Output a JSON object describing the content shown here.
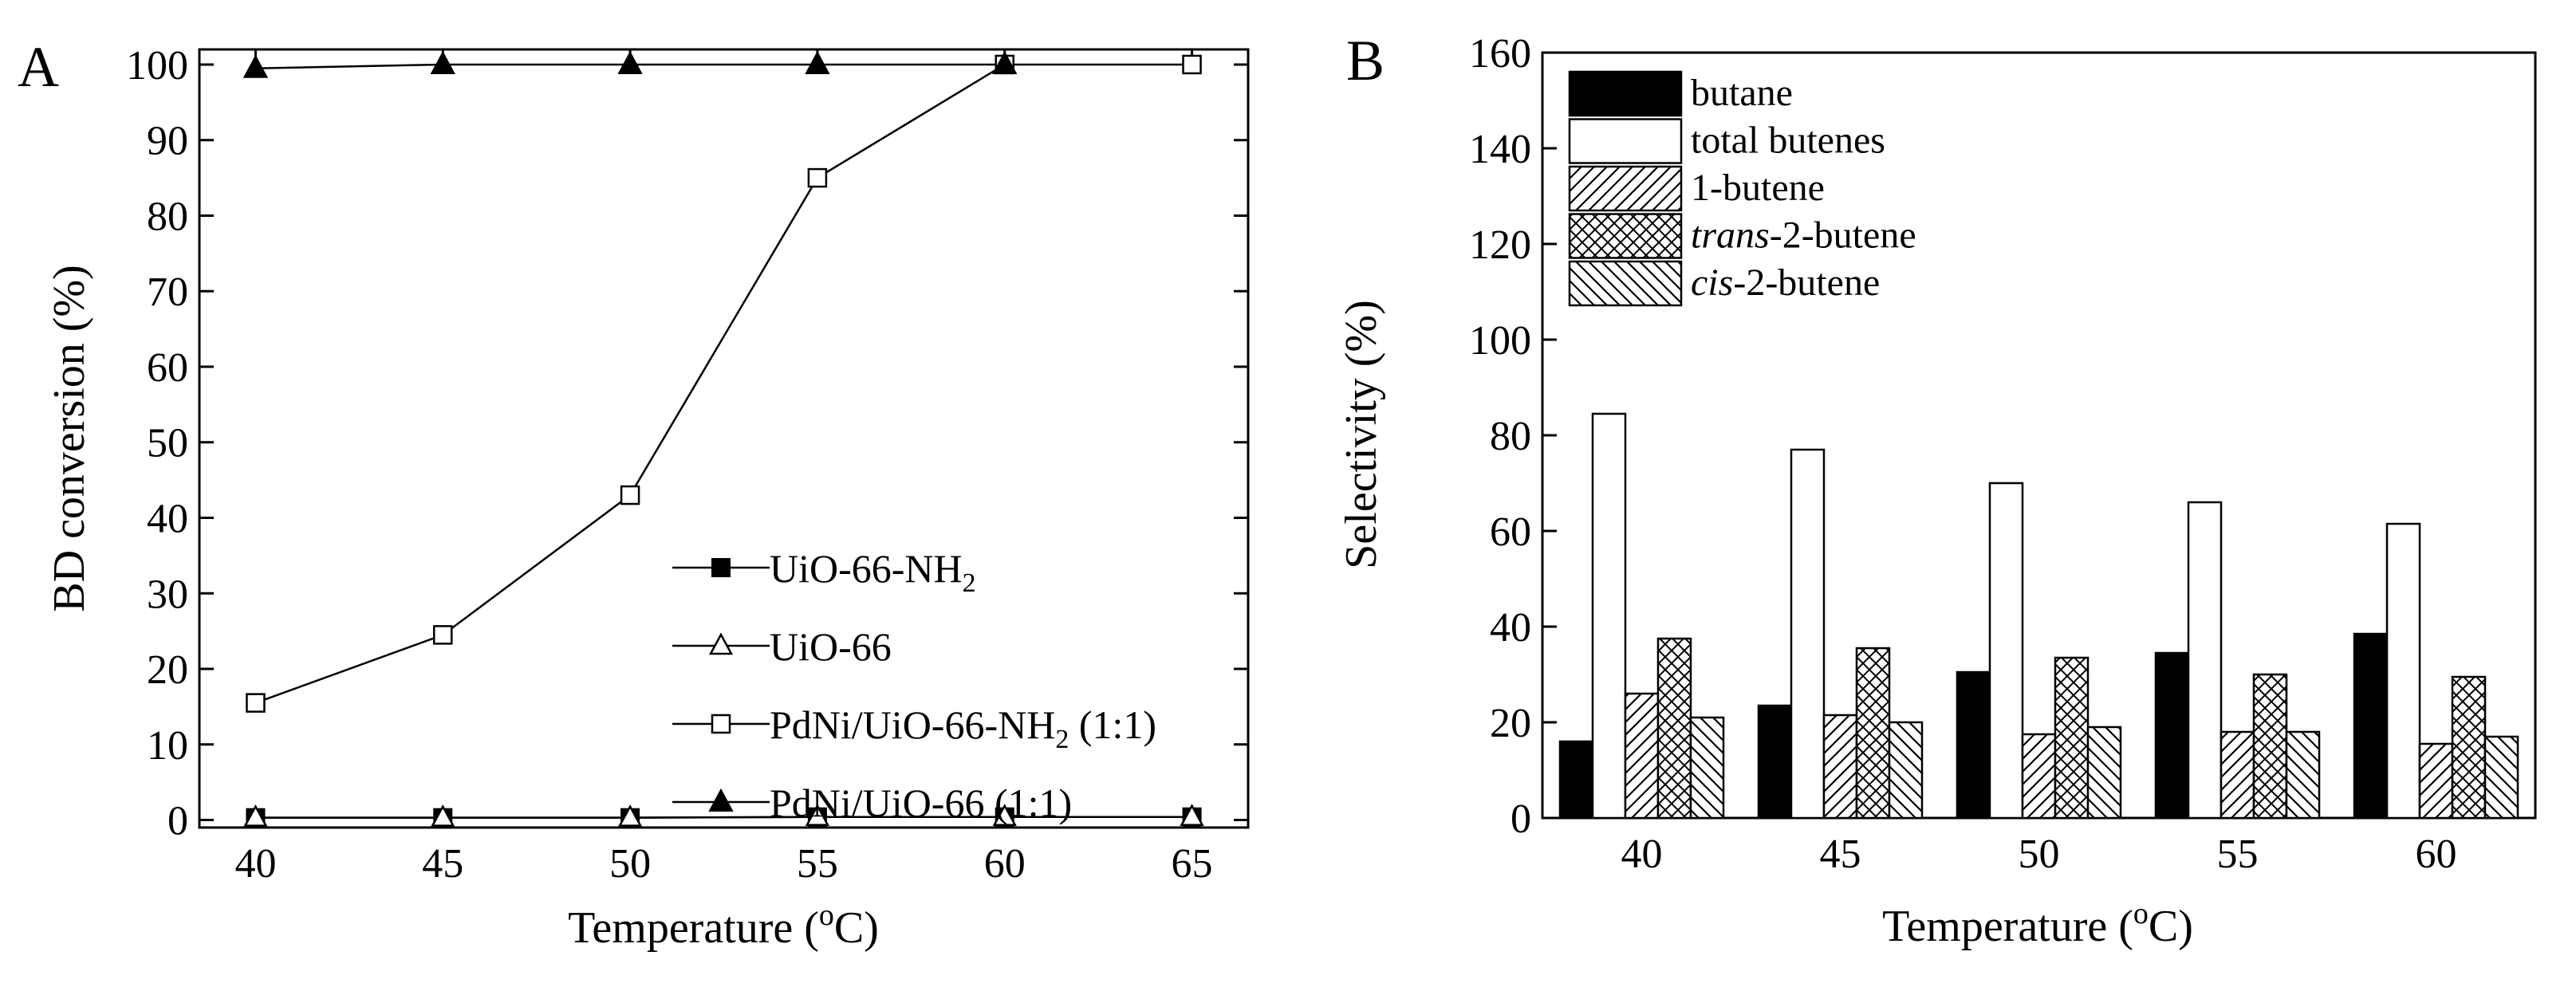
{
  "colors": {
    "ink": "#000000",
    "paper": "#ffffff"
  },
  "chart_data": [
    {
      "panel": "A",
      "type": "line",
      "xlabel_prefix": "Temperature (",
      "xlabel_sup": "o",
      "xlabel_suffix": "C)",
      "ylabel": "BD conversion (%)",
      "xlim": [
        38.5,
        66.5
      ],
      "ylim": [
        -1,
        102
      ],
      "xticks": [
        40,
        45,
        50,
        55,
        60,
        65
      ],
      "yticks": [
        0,
        10,
        20,
        30,
        40,
        50,
        60,
        70,
        80,
        90,
        100
      ],
      "legend_position": "lower-right",
      "series": [
        {
          "name": "UiO-66-NH2",
          "label_main": "UiO-66-NH",
          "label_sub": "2",
          "label_tail": "",
          "marker": "filled-square",
          "x": [
            40,
            45,
            50,
            55,
            60,
            65
          ],
          "y": [
            0.3,
            0.3,
            0.3,
            0.4,
            0.4,
            0.4
          ]
        },
        {
          "name": "UiO-66",
          "label_main": "UiO-66",
          "label_sub": "",
          "label_tail": "",
          "marker": "open-triangle",
          "x": [
            40,
            45,
            50,
            55,
            60,
            65
          ],
          "y": [
            0.3,
            0.3,
            0.3,
            0.4,
            0.4,
            0.4
          ]
        },
        {
          "name": "PdNi/UiO-66-NH2 (1:1)",
          "label_main": "PdNi/UiO-66-NH",
          "label_sub": "2",
          "label_tail": " (1:1)",
          "marker": "open-square",
          "x": [
            40,
            45,
            50,
            55,
            60,
            65
          ],
          "y": [
            15.5,
            24.5,
            43,
            85,
            100,
            100
          ]
        },
        {
          "name": "PdNi/UiO-66 (1:1)",
          "label_main": "PdNi/UiO-66 (1:1)",
          "label_sub": "",
          "label_tail": "",
          "marker": "filled-triangle",
          "x": [
            40,
            45,
            50,
            55,
            60
          ],
          "y": [
            99.5,
            100,
            100,
            100,
            100
          ]
        }
      ]
    },
    {
      "panel": "B",
      "type": "bar",
      "xlabel_prefix": "Temperature (",
      "xlabel_sup": "o",
      "xlabel_suffix": "C)",
      "ylabel": "Selectivity (%)",
      "ylim": [
        0,
        160
      ],
      "yticks": [
        0,
        20,
        40,
        60,
        80,
        100,
        120,
        140,
        160
      ],
      "categories": [
        "40",
        "45",
        "50",
        "55",
        "60"
      ],
      "legend_position": "top-left",
      "series": [
        {
          "name": "butane",
          "label_italic": "",
          "label_rest": "butane",
          "fill": "solid",
          "values": [
            16,
            23.5,
            30.5,
            34.5,
            38.5
          ]
        },
        {
          "name": "total butenes",
          "label_italic": "",
          "label_rest": "total butenes",
          "fill": "open",
          "values": [
            84.5,
            77,
            70,
            66,
            61.5
          ]
        },
        {
          "name": "1-butene",
          "label_italic": "",
          "label_rest": "1-butene",
          "fill": "diagonal",
          "values": [
            26,
            21.5,
            17.5,
            18,
            15.5
          ]
        },
        {
          "name": "trans-2-butene",
          "label_italic": "trans",
          "label_rest": "-2-butene",
          "fill": "crosshatch",
          "values": [
            37.5,
            35.5,
            33.5,
            30,
            29.5
          ]
        },
        {
          "name": "cis-2-butene",
          "label_italic": "cis",
          "label_rest": "-2-butene",
          "fill": "backdiagonal",
          "values": [
            21,
            20,
            19,
            18,
            17
          ]
        }
      ]
    }
  ],
  "panels": {
    "a_letter": "A",
    "b_letter": "B"
  }
}
